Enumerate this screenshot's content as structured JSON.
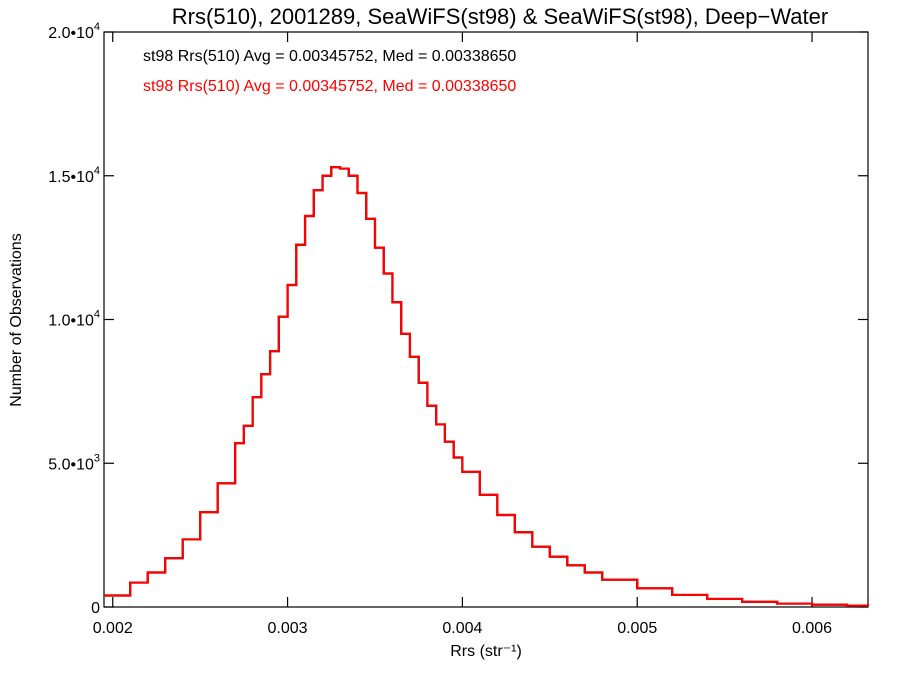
{
  "chart_data": {
    "type": "line",
    "title": "Rrs(510), 2001289, SeaWiFS(st98) & SeaWiFS(st98), Deep−Water",
    "xlabel": "Rrs (str⁻¹)",
    "ylabel": "Number of Observations",
    "xlim": [
      0.00195,
      0.00632
    ],
    "ylim": [
      0,
      20000
    ],
    "grid": false,
    "x_ticks": [
      {
        "value": 0.002,
        "label": "0.002"
      },
      {
        "value": 0.003,
        "label": "0.003"
      },
      {
        "value": 0.004,
        "label": "0.004"
      },
      {
        "value": 0.005,
        "label": "0.005"
      },
      {
        "value": 0.006,
        "label": "0.006"
      }
    ],
    "y_ticks": [
      {
        "value": 0,
        "mantissa": "0",
        "exponent": ""
      },
      {
        "value": 5000,
        "mantissa": "5.0•10",
        "exponent": "3"
      },
      {
        "value": 10000,
        "mantissa": "1.0•10",
        "exponent": "4"
      },
      {
        "value": 15000,
        "mantissa": "1.5•10",
        "exponent": "4"
      },
      {
        "value": 20000,
        "mantissa": "2.0•10",
        "exponent": "4"
      }
    ],
    "annotations": [
      {
        "text": "st98 Rrs(510) Avg = 0.00345752, Med = 0.00338650",
        "color": "#000000"
      },
      {
        "text": "st98 Rrs(510) Avg = 0.00345752, Med = 0.00338650",
        "color": "#ff0000"
      }
    ],
    "series": [
      {
        "color": "#000000",
        "style": "step",
        "x": [
          0.00195,
          0.0021,
          0.0022,
          0.0023,
          0.0024,
          0.0025,
          0.0026,
          0.0027,
          0.00275,
          0.0028,
          0.00285,
          0.0029,
          0.00295,
          0.003,
          0.00305,
          0.0031,
          0.00315,
          0.0032,
          0.00325,
          0.0033,
          0.00335,
          0.0034,
          0.00345,
          0.0035,
          0.00355,
          0.0036,
          0.00365,
          0.0037,
          0.00375,
          0.0038,
          0.00385,
          0.0039,
          0.00395,
          0.004,
          0.0041,
          0.0042,
          0.0043,
          0.0044,
          0.0045,
          0.0046,
          0.0047,
          0.0048,
          0.005,
          0.0052,
          0.0054,
          0.0056,
          0.0058,
          0.006,
          0.0062,
          0.00632
        ],
        "values": [
          400,
          850,
          1200,
          1700,
          2350,
          3300,
          4300,
          5700,
          6300,
          7300,
          8100,
          8900,
          10100,
          11200,
          12600,
          13600,
          14500,
          15000,
          15300,
          15250,
          15000,
          14400,
          13500,
          12500,
          11600,
          10600,
          9500,
          8700,
          7800,
          7000,
          6350,
          5750,
          5200,
          4700,
          3900,
          3200,
          2600,
          2100,
          1750,
          1450,
          1200,
          950,
          650,
          420,
          280,
          180,
          120,
          80,
          50,
          40
        ]
      },
      {
        "color": "#ff0000",
        "style": "step",
        "x": [
          0.00195,
          0.0021,
          0.0022,
          0.0023,
          0.0024,
          0.0025,
          0.0026,
          0.0027,
          0.00275,
          0.0028,
          0.00285,
          0.0029,
          0.00295,
          0.003,
          0.00305,
          0.0031,
          0.00315,
          0.0032,
          0.00325,
          0.0033,
          0.00335,
          0.0034,
          0.00345,
          0.0035,
          0.00355,
          0.0036,
          0.00365,
          0.0037,
          0.00375,
          0.0038,
          0.00385,
          0.0039,
          0.00395,
          0.004,
          0.0041,
          0.0042,
          0.0043,
          0.0044,
          0.0045,
          0.0046,
          0.0047,
          0.0048,
          0.005,
          0.0052,
          0.0054,
          0.0056,
          0.0058,
          0.006,
          0.0062,
          0.00632
        ],
        "values": [
          400,
          850,
          1200,
          1700,
          2350,
          3300,
          4300,
          5700,
          6300,
          7300,
          8100,
          8900,
          10100,
          11200,
          12600,
          13600,
          14500,
          15000,
          15300,
          15250,
          15000,
          14400,
          13500,
          12500,
          11600,
          10600,
          9500,
          8700,
          7800,
          7000,
          6350,
          5750,
          5200,
          4700,
          3900,
          3200,
          2600,
          2100,
          1750,
          1450,
          1200,
          950,
          650,
          420,
          280,
          180,
          120,
          80,
          50,
          40
        ]
      }
    ]
  }
}
